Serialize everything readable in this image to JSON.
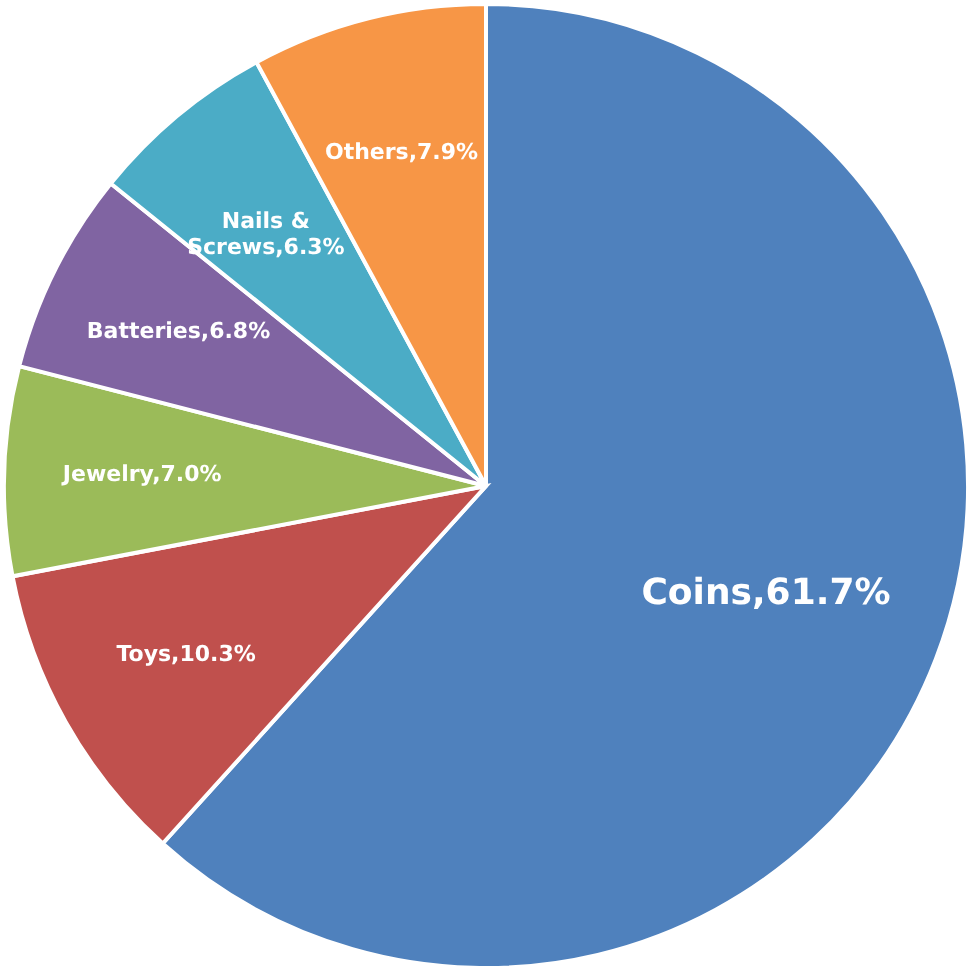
{
  "chart_data": {
    "type": "pie",
    "categories": [
      "Coins",
      "Toys",
      "Jewelry",
      "Batteries",
      "Nails & Screws",
      "Others"
    ],
    "values": [
      61.7,
      10.3,
      7.0,
      6.8,
      6.3,
      7.9
    ],
    "value_labels": [
      "61.7%",
      "10.3%",
      "7.0%",
      "6.8%",
      "6.3%",
      "7.9%"
    ],
    "colors": [
      "#4f81bd",
      "#c0504d",
      "#9bbb59",
      "#8064a2",
      "#4bacc6",
      "#f79646"
    ],
    "legend": false
  }
}
